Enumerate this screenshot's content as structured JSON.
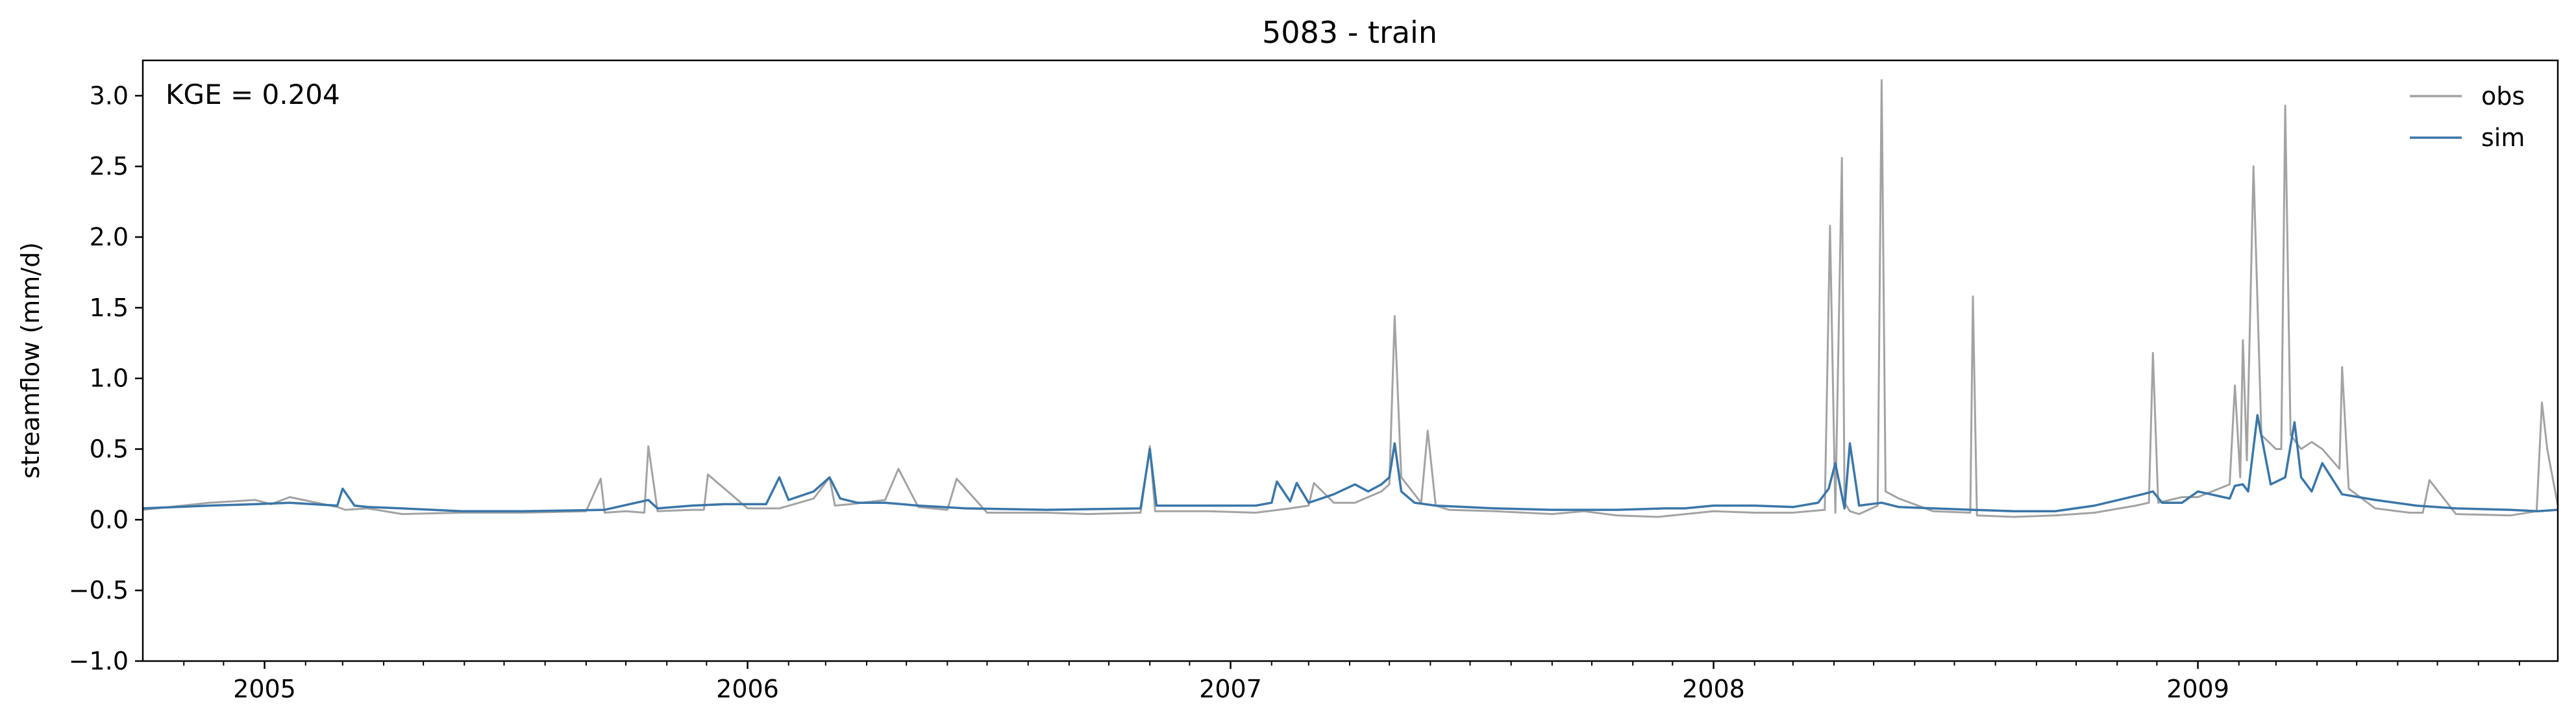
{
  "chart_data": {
    "type": "line",
    "title": "5083 - train",
    "ylabel": "streamflow (mm/d)",
    "xlabel": "",
    "annotation": "KGE = 0.204",
    "ylim": [
      -1.0,
      3.25
    ],
    "xlim": [
      "2004-10-01",
      "2009-09-30"
    ],
    "yticks": [
      -1.0,
      -0.5,
      0.0,
      0.5,
      1.0,
      1.5,
      2.0,
      2.5,
      3.0
    ],
    "ytick_labels": [
      "−1.0",
      "−0.5",
      "0.0",
      "0.5",
      "1.0",
      "1.5",
      "2.0",
      "2.5",
      "3.0"
    ],
    "xticks": [
      "2005-01-01",
      "2006-01-01",
      "2007-01-01",
      "2008-01-01",
      "2009-01-01"
    ],
    "xtick_labels": [
      "2005",
      "2006",
      "2007",
      "2008",
      "2009"
    ],
    "legend_position": "top-right",
    "grid": false,
    "series": [
      {
        "name": "obs",
        "color": "#a3a3a3",
        "x": [
          "2004-10-01",
          "2004-11-20",
          "2004-12-25",
          "2005-01-06",
          "2005-01-20",
          "2005-02-25",
          "2005-03-03",
          "2005-03-20",
          "2005-04-15",
          "2005-05-30",
          "2005-07-15",
          "2005-09-01",
          "2005-09-12",
          "2005-09-15",
          "2005-10-01",
          "2005-10-15",
          "2005-10-18",
          "2005-10-25",
          "2005-11-20",
          "2005-11-29",
          "2005-12-02",
          "2006-01-01",
          "2006-01-25",
          "2006-02-20",
          "2006-03-04",
          "2006-03-08",
          "2006-03-20",
          "2006-04-15",
          "2006-04-25",
          "2006-05-10",
          "2006-06-01",
          "2006-06-08",
          "2006-07-01",
          "2006-08-15",
          "2006-09-15",
          "2006-10-25",
          "2006-11-01",
          "2006-11-05",
          "2006-12-15",
          "2007-01-20",
          "2007-02-15",
          "2007-03-01",
          "2007-03-05",
          "2007-03-20",
          "2007-04-05",
          "2007-04-15",
          "2007-04-25",
          "2007-05-01",
          "2007-05-05",
          "2007-05-10",
          "2007-05-25",
          "2007-05-30",
          "2007-06-05",
          "2007-06-15",
          "2007-07-20",
          "2007-09-01",
          "2007-09-25",
          "2007-10-20",
          "2007-11-20",
          "2008-01-01",
          "2008-02-01",
          "2008-03-01",
          "2008-03-25",
          "2008-03-29",
          "2008-04-02",
          "2008-04-07",
          "2008-04-09",
          "2008-04-13",
          "2008-04-20",
          "2008-05-04",
          "2008-05-07",
          "2008-05-10",
          "2008-05-20",
          "2008-06-15",
          "2008-07-13",
          "2008-07-15",
          "2008-07-18",
          "2008-08-15",
          "2008-09-15",
          "2008-10-15",
          "2008-11-15",
          "2008-11-25",
          "2008-11-28",
          "2008-12-02",
          "2008-12-20",
          "2009-01-01",
          "2009-01-25",
          "2009-01-29",
          "2009-02-02",
          "2009-02-04",
          "2009-02-07",
          "2009-02-12",
          "2009-02-18",
          "2009-03-01",
          "2009-03-05",
          "2009-03-08",
          "2009-03-12",
          "2009-03-20",
          "2009-03-28",
          "2009-04-05",
          "2009-04-18",
          "2009-04-20",
          "2009-04-25",
          "2009-05-15",
          "2009-06-10",
          "2009-06-20",
          "2009-06-25",
          "2009-07-15",
          "2009-08-25",
          "2009-09-14",
          "2009-09-18",
          "2009-09-22",
          "2009-09-30"
        ],
        "values": [
          0.07,
          0.12,
          0.14,
          0.11,
          0.16,
          0.09,
          0.07,
          0.08,
          0.04,
          0.05,
          0.05,
          0.06,
          0.29,
          0.05,
          0.06,
          0.05,
          0.52,
          0.06,
          0.07,
          0.07,
          0.32,
          0.08,
          0.08,
          0.15,
          0.3,
          0.1,
          0.11,
          0.14,
          0.36,
          0.09,
          0.07,
          0.29,
          0.05,
          0.05,
          0.04,
          0.05,
          0.52,
          0.06,
          0.06,
          0.05,
          0.08,
          0.1,
          0.26,
          0.12,
          0.12,
          0.16,
          0.2,
          0.25,
          1.44,
          0.3,
          0.12,
          0.63,
          0.1,
          0.07,
          0.06,
          0.04,
          0.06,
          0.03,
          0.02,
          0.06,
          0.05,
          0.05,
          0.07,
          2.08,
          0.05,
          2.56,
          0.12,
          0.06,
          0.04,
          0.1,
          3.11,
          0.2,
          0.15,
          0.06,
          0.05,
          1.58,
          0.03,
          0.02,
          0.03,
          0.05,
          0.1,
          0.12,
          1.18,
          0.12,
          0.16,
          0.16,
          0.25,
          0.95,
          0.3,
          1.27,
          0.42,
          2.5,
          0.6,
          0.5,
          0.5,
          2.93,
          0.6,
          0.5,
          0.55,
          0.5,
          0.36,
          1.08,
          0.22,
          0.08,
          0.05,
          0.05,
          0.28,
          0.04,
          0.03,
          0.06,
          0.83,
          0.5,
          0.1
        ]
      },
      {
        "name": "sim",
        "color": "#3a76a8",
        "x": [
          "2004-10-01",
          "2004-11-20",
          "2004-12-25",
          "2005-01-20",
          "2005-02-25",
          "2005-03-01",
          "2005-03-10",
          "2005-03-20",
          "2005-04-15",
          "2005-05-30",
          "2005-07-15",
          "2005-09-15",
          "2005-10-18",
          "2005-10-25",
          "2005-11-20",
          "2005-12-15",
          "2006-01-15",
          "2006-01-25",
          "2006-02-01",
          "2006-02-20",
          "2006-03-04",
          "2006-03-12",
          "2006-03-25",
          "2006-04-15",
          "2006-05-10",
          "2006-06-15",
          "2006-08-15",
          "2006-10-25",
          "2006-11-01",
          "2006-11-06",
          "2006-12-15",
          "2007-01-20",
          "2007-02-01",
          "2007-02-05",
          "2007-02-15",
          "2007-02-20",
          "2007-03-01",
          "2007-03-20",
          "2007-04-05",
          "2007-04-15",
          "2007-04-25",
          "2007-05-01",
          "2007-05-05",
          "2007-05-10",
          "2007-05-20",
          "2007-06-05",
          "2007-07-20",
          "2007-09-01",
          "2007-10-20",
          "2007-11-25",
          "2007-12-10",
          "2008-01-01",
          "2008-02-01",
          "2008-03-01",
          "2008-03-20",
          "2008-03-28",
          "2008-04-02",
          "2008-04-09",
          "2008-04-13",
          "2008-04-20",
          "2008-05-07",
          "2008-05-20",
          "2008-06-15",
          "2008-07-15",
          "2008-08-15",
          "2008-09-15",
          "2008-10-15",
          "2008-11-20",
          "2008-11-28",
          "2008-12-05",
          "2008-12-20",
          "2009-01-01",
          "2009-01-25",
          "2009-01-29",
          "2009-02-04",
          "2009-02-08",
          "2009-02-15",
          "2009-02-25",
          "2009-03-08",
          "2009-03-15",
          "2009-03-20",
          "2009-03-28",
          "2009-04-05",
          "2009-04-20",
          "2009-05-15",
          "2009-06-15",
          "2009-07-15",
          "2009-08-25",
          "2009-09-15",
          "2009-09-30"
        ],
        "values": [
          0.08,
          0.1,
          0.11,
          0.12,
          0.1,
          0.22,
          0.1,
          0.09,
          0.08,
          0.06,
          0.06,
          0.07,
          0.14,
          0.08,
          0.1,
          0.11,
          0.11,
          0.3,
          0.14,
          0.2,
          0.3,
          0.15,
          0.12,
          0.12,
          0.1,
          0.08,
          0.07,
          0.08,
          0.5,
          0.1,
          0.1,
          0.1,
          0.12,
          0.27,
          0.13,
          0.26,
          0.12,
          0.18,
          0.25,
          0.2,
          0.25,
          0.3,
          0.54,
          0.2,
          0.12,
          0.1,
          0.08,
          0.07,
          0.07,
          0.08,
          0.08,
          0.1,
          0.1,
          0.09,
          0.12,
          0.22,
          0.4,
          0.08,
          0.54,
          0.1,
          0.12,
          0.09,
          0.08,
          0.07,
          0.06,
          0.06,
          0.1,
          0.18,
          0.2,
          0.12,
          0.12,
          0.2,
          0.15,
          0.24,
          0.25,
          0.2,
          0.74,
          0.25,
          0.3,
          0.69,
          0.3,
          0.2,
          0.4,
          0.18,
          0.14,
          0.1,
          0.08,
          0.07,
          0.06,
          0.07
        ]
      }
    ]
  }
}
